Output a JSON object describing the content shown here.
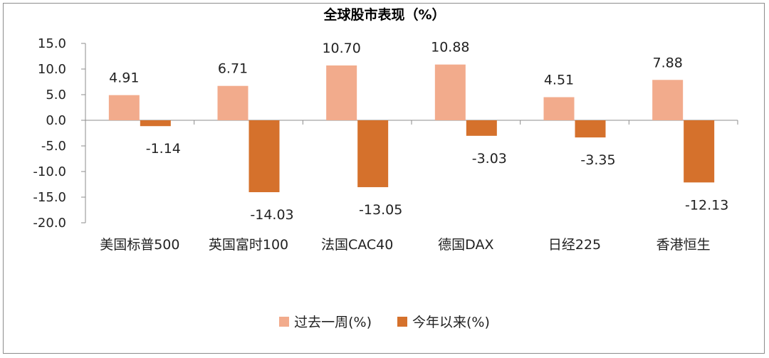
{
  "chart_data": {
    "type": "bar",
    "title": "全球股市表现（%）",
    "categories": [
      "美国标普500",
      "英国富时100",
      "法国CAC40",
      "德国DAX",
      "日经225",
      "香港恒生"
    ],
    "series": [
      {
        "name": "过去一周(%)",
        "color": "#f2ab8c",
        "values": [
          4.91,
          6.71,
          10.7,
          10.88,
          4.51,
          7.88
        ]
      },
      {
        "name": "今年以来(%)",
        "color": "#d5712c",
        "values": [
          -1.14,
          -14.03,
          -13.05,
          -3.03,
          -3.35,
          -12.13
        ]
      }
    ],
    "data_labels": [
      [
        "4.91",
        "6.71",
        "10.70",
        "10.88",
        "4.51",
        "7.88"
      ],
      [
        "-1.14",
        "-14.03",
        "-13.05",
        "-3.03",
        "-3.35",
        "-12.13"
      ]
    ],
    "y_ticks": [
      "15.0",
      "10.0",
      "5.0",
      "0.0",
      "-5.0",
      "-10.0",
      "-15.0",
      "-20.0"
    ],
    "ylim": [
      -20,
      15
    ],
    "grid": false,
    "legend_position": "bottom"
  }
}
